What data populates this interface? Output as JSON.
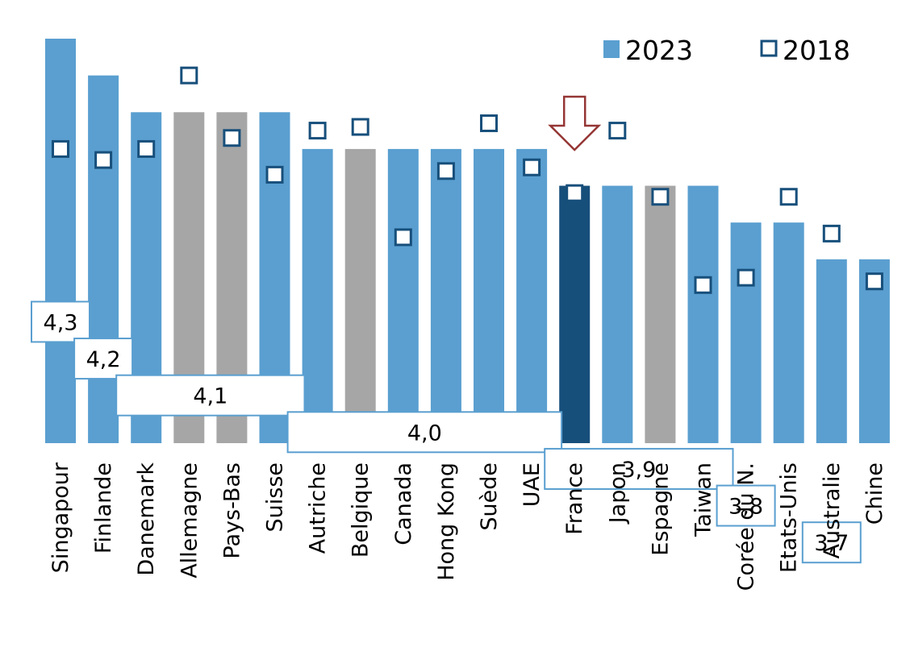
{
  "chart_data": {
    "type": "bar",
    "title": "",
    "xlabel": "",
    "ylabel": "",
    "ylim": [
      3.5,
      4.6
    ],
    "grid": false,
    "legend_position": "top-right",
    "categories": [
      "Singapour",
      "Finlande",
      "Danemark",
      "Allemagne",
      "Pays-Bas",
      "Suisse",
      "Autriche",
      "Belgique",
      "Canada",
      "Hong Kong",
      "Suède",
      "UAE",
      "France",
      "Japon",
      "Espagne",
      "Taiwan",
      "Corée du N.",
      "Etats-Unis",
      "Australie",
      "Chine"
    ],
    "series": [
      {
        "name": "2023",
        "type": "bar",
        "values": [
          4.6,
          4.5,
          4.4,
          4.4,
          4.4,
          4.4,
          4.3,
          4.3,
          4.3,
          4.3,
          4.3,
          4.3,
          4.2,
          4.2,
          4.2,
          4.2,
          4.1,
          4.1,
          4.0,
          4.0
        ]
      },
      {
        "name": "2018",
        "type": "marker",
        "values": [
          4.3,
          4.27,
          4.3,
          4.5,
          4.33,
          4.23,
          4.35,
          4.36,
          4.06,
          4.24,
          4.37,
          4.25,
          4.18,
          4.35,
          4.17,
          3.93,
          3.95,
          4.17,
          4.07,
          3.94
        ]
      }
    ],
    "bar_colors": {
      "default": "#5a9fd0",
      "highlight": "#174f7b",
      "neighbor": "#a6a6a6"
    },
    "bar_color_keys": [
      "default",
      "default",
      "default",
      "neighbor",
      "neighbor",
      "default",
      "default",
      "neighbor",
      "default",
      "default",
      "default",
      "default",
      "highlight",
      "default",
      "neighbor",
      "default",
      "default",
      "default",
      "default",
      "default"
    ],
    "marker_color": "#174f7b",
    "arrow_color": "#943634",
    "arrow_target": "France",
    "group_labels": [
      {
        "text": "4,3",
        "from": "Singapour",
        "to": "Singapour",
        "level": 3.83
      },
      {
        "text": "4,2",
        "from": "Finlande",
        "to": "Finlande",
        "level": 3.73
      },
      {
        "text": "4,1",
        "from": "Danemark",
        "to": "Suisse",
        "level": 3.63
      },
      {
        "text": "4,0",
        "from": "Autriche",
        "to": "UAE",
        "level": 3.53
      },
      {
        "text": "3,9",
        "from": "France",
        "to": "Taiwan",
        "level": 3.43
      },
      {
        "text": "3,8",
        "from": "Corée du N.",
        "to": "Corée du N.",
        "level": 3.33
      },
      {
        "text": "3,7",
        "from": "Australie",
        "to": "Australie",
        "level": 3.23
      }
    ],
    "legend": [
      {
        "label": "2023",
        "kind": "bar"
      },
      {
        "label": "2018",
        "kind": "marker"
      }
    ]
  }
}
